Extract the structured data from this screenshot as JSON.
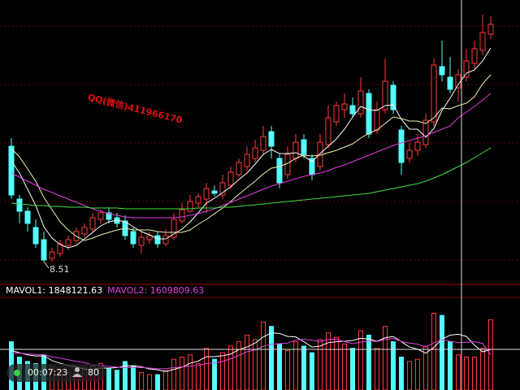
{
  "chart_data": {
    "type": "candlestick",
    "open": [
      9.93,
      9.28,
      9.13,
      8.93,
      8.78,
      8.55,
      8.61,
      8.71,
      8.77,
      8.85,
      8.91,
      9.03,
      9.11,
      9.05,
      9.01,
      8.88,
      8.71,
      8.78,
      8.83,
      8.73,
      8.81,
      9.01,
      9.13,
      9.23,
      9.28,
      9.38,
      9.33,
      9.45,
      9.58,
      9.68,
      9.78,
      9.88,
      10.11,
      9.78,
      9.58,
      9.78,
      10.01,
      9.78,
      9.68,
      9.95,
      10.23,
      10.38,
      10.43,
      10.33,
      10.58,
      10.13,
      10.38,
      10.68,
      10.13,
      9.78,
      9.88,
      9.95,
      10.23,
      10.91,
      10.78,
      10.65,
      10.78,
      10.95,
      11.11,
      11.31
    ],
    "high": [
      10.03,
      9.33,
      9.18,
      9.03,
      8.88,
      8.68,
      8.78,
      8.83,
      8.93,
      8.98,
      9.11,
      9.15,
      9.18,
      9.11,
      9.08,
      8.93,
      8.88,
      8.88,
      8.88,
      8.91,
      9.11,
      9.23,
      9.33,
      9.35,
      9.48,
      9.45,
      9.58,
      9.68,
      9.78,
      9.93,
      10.01,
      10.18,
      10.18,
      9.83,
      9.93,
      10.08,
      10.08,
      9.83,
      10.08,
      10.43,
      10.48,
      10.58,
      10.53,
      10.78,
      10.63,
      10.48,
      11.01,
      10.73,
      10.18,
      9.98,
      10.08,
      10.33,
      11.01,
      11.23,
      11.03,
      10.88,
      11.13,
      11.23,
      11.55,
      11.53
    ],
    "low": [
      9.28,
      8.98,
      8.88,
      8.68,
      8.51,
      8.51,
      8.57,
      8.65,
      8.73,
      8.81,
      8.88,
      8.98,
      8.98,
      8.93,
      8.78,
      8.68,
      8.61,
      8.73,
      8.68,
      8.7,
      8.78,
      8.98,
      9.11,
      9.18,
      9.11,
      9.31,
      9.28,
      9.41,
      9.55,
      9.63,
      9.73,
      9.83,
      9.78,
      9.41,
      9.53,
      9.73,
      9.78,
      9.51,
      9.63,
      9.91,
      10.18,
      10.28,
      10.28,
      10.28,
      10.03,
      10.08,
      10.33,
      10.33,
      9.58,
      9.73,
      9.81,
      9.91,
      10.18,
      10.73,
      10.58,
      10.48,
      10.73,
      10.88,
      11.05,
      11.25
    ],
    "close": [
      9.33,
      9.13,
      8.98,
      8.73,
      8.53,
      8.63,
      8.73,
      8.78,
      8.88,
      8.93,
      9.05,
      9.11,
      9.03,
      8.98,
      8.83,
      8.73,
      8.81,
      8.83,
      8.73,
      8.83,
      9.03,
      9.15,
      9.25,
      9.31,
      9.41,
      9.35,
      9.48,
      9.61,
      9.73,
      9.83,
      9.91,
      10.05,
      9.93,
      9.48,
      9.83,
      9.98,
      9.83,
      9.58,
      9.98,
      10.28,
      10.43,
      10.45,
      10.33,
      10.61,
      10.08,
      10.38,
      10.73,
      10.38,
      9.73,
      9.88,
      9.98,
      10.25,
      10.93,
      10.81,
      10.63,
      10.81,
      10.98,
      11.13,
      11.33,
      11.43
    ],
    "ylim": [
      8.23,
      11.73
    ],
    "up_color": "#ff3a3a",
    "down_color": "#54fcfc",
    "ma_lines": [
      {
        "color": "#ffffff",
        "values": [
          9.75,
          9.6,
          9.4,
          9.2,
          8.94,
          8.8,
          8.72,
          8.68,
          8.71,
          8.79,
          8.87,
          8.95,
          9.0,
          9.02,
          9.0,
          8.94,
          8.88,
          8.84,
          8.79,
          8.79,
          8.85,
          8.91,
          9.0,
          9.11,
          9.23,
          9.29,
          9.36,
          9.43,
          9.52,
          9.6,
          9.71,
          9.83,
          9.89,
          9.84,
          9.84,
          9.85,
          9.81,
          9.74,
          9.84,
          9.93,
          10.02,
          10.14,
          10.29,
          10.42,
          10.38,
          10.37,
          10.43,
          10.44,
          10.26,
          10.14,
          10.14,
          10.04,
          10.15,
          10.37,
          10.52,
          10.69,
          10.83,
          10.87,
          10.98,
          11.14
        ]
      },
      {
        "color": "#f4f0b0",
        "values": [
          9.9,
          9.8,
          9.65,
          9.5,
          9.3,
          9.15,
          9.0,
          8.9,
          8.82,
          8.77,
          8.8,
          8.84,
          8.87,
          8.9,
          8.92,
          8.9,
          8.9,
          8.9,
          8.88,
          8.87,
          8.87,
          8.87,
          8.9,
          8.97,
          9.03,
          9.1,
          9.17,
          9.25,
          9.34,
          9.42,
          9.5,
          9.59,
          9.66,
          9.68,
          9.72,
          9.78,
          9.82,
          9.81,
          9.82,
          9.85,
          9.88,
          9.92,
          9.96,
          10.03,
          10.09,
          10.13,
          10.21,
          10.29,
          10.27,
          10.24,
          10.24,
          10.21,
          10.28,
          10.4,
          10.39,
          10.43,
          10.46,
          10.54,
          10.7,
          10.81
        ]
      },
      {
        "color": "#e040e0",
        "values": [
          9.6,
          9.55,
          9.5,
          9.45,
          9.4,
          9.36,
          9.32,
          9.28,
          9.24,
          9.2,
          9.16,
          9.13,
          9.1,
          9.08,
          9.06,
          9.05,
          9.05,
          9.05,
          9.05,
          9.05,
          9.05,
          9.06,
          9.08,
          9.1,
          9.13,
          9.16,
          9.2,
          9.24,
          9.28,
          9.32,
          9.36,
          9.4,
          9.44,
          9.47,
          9.5,
          9.53,
          9.56,
          9.58,
          9.6,
          9.63,
          9.67,
          9.7,
          9.74,
          9.78,
          9.82,
          9.86,
          9.9,
          9.94,
          9.97,
          10.0,
          10.03,
          10.06,
          10.1,
          10.14,
          10.18,
          10.28,
          10.35,
          10.42,
          10.5,
          10.58
        ]
      },
      {
        "color": "#40e040",
        "values": [
          9.23,
          9.22,
          9.21,
          9.2,
          9.2,
          9.19,
          9.19,
          9.18,
          9.18,
          9.18,
          9.17,
          9.17,
          9.17,
          9.17,
          9.16,
          9.16,
          9.16,
          9.16,
          9.16,
          9.16,
          9.16,
          9.16,
          9.16,
          9.17,
          9.17,
          9.17,
          9.18,
          9.18,
          9.19,
          9.2,
          9.21,
          9.22,
          9.23,
          9.24,
          9.25,
          9.26,
          9.27,
          9.28,
          9.29,
          9.3,
          9.31,
          9.32,
          9.33,
          9.34,
          9.35,
          9.37,
          9.39,
          9.41,
          9.43,
          9.45,
          9.47,
          9.5,
          9.54,
          9.58,
          9.63,
          9.68,
          9.73,
          9.79,
          9.85,
          9.91
        ]
      }
    ],
    "watermark": "QQ(微信)411966170",
    "volume": {
      "ylim": [
        0,
        4000000
      ],
      "values": [
        2200000,
        1500000,
        1300000,
        1200000,
        1600000,
        1100000,
        900000,
        800000,
        900000,
        1000000,
        1100000,
        1200000,
        1000000,
        900000,
        1300000,
        1100000,
        800000,
        700000,
        700000,
        900000,
        1400000,
        1500000,
        1600000,
        1200000,
        1900000,
        1400000,
        1700000,
        2000000,
        2200000,
        2500000,
        2300000,
        3100000,
        2900000,
        2100000,
        1800000,
        2200000,
        2000000,
        1700000,
        2300000,
        2600000,
        2400000,
        2100000,
        1900000,
        2700000,
        2500000,
        1900000,
        2900000,
        2200000,
        1500000,
        1300000,
        1400000,
        2000000,
        3500000,
        3400000,
        2200000,
        1600000,
        1500000,
        1500000,
        1900000,
        3200000
      ],
      "legend": [
        "MAVOL1: 1848121.63",
        "MAVOL2: 1609809.63"
      ],
      "ma_lines": [
        {
          "color": "#ffffff",
          "values": [
            1800000,
            1700000,
            1600000,
            1550000,
            1560000,
            1340000,
            1220000,
            1120000,
            1060000,
            940000,
            940000,
            1000000,
            1000000,
            1020000,
            1100000,
            1100000,
            1060000,
            960000,
            920000,
            840000,
            940000,
            1040000,
            1220000,
            1320000,
            1520000,
            1520000,
            1560000,
            1640000,
            1840000,
            1960000,
            2140000,
            2420000,
            2600000,
            2580000,
            2440000,
            2420000,
            2200000,
            1960000,
            2000000,
            2160000,
            2200000,
            2220000,
            2260000,
            2360000,
            2320000,
            2220000,
            2380000,
            2440000,
            2200000,
            1960000,
            1860000,
            1680000,
            1940000,
            2320000,
            2500000,
            2540000,
            2440000,
            2040000,
            1740000,
            1848121.63
          ]
        },
        {
          "color": "#e040e0",
          "values": [
            1700000,
            1680000,
            1650000,
            1620000,
            1600000,
            1520000,
            1450000,
            1380000,
            1300000,
            1250000,
            1140000,
            1110000,
            1080000,
            1040000,
            1020000,
            1020000,
            1030000,
            1000000,
            970000,
            970000,
            1020000,
            1050000,
            1090000,
            1120000,
            1210000,
            1230000,
            1300000,
            1430000,
            1580000,
            1740000,
            1830000,
            1990000,
            2090000,
            2110000,
            2140000,
            2280000,
            2310000,
            2270000,
            2220000,
            2300000,
            2310000,
            2210000,
            2110000,
            2180000,
            2240000,
            2210000,
            2300000,
            2350000,
            2210000,
            2140000,
            2090000,
            1950000,
            2160000,
            2300000,
            2220000,
            2160000,
            2170000,
            2200000,
            2120000,
            1609809.63
          ]
        }
      ]
    },
    "status": {
      "time": "00:07:23",
      "viewers": 80
    }
  }
}
